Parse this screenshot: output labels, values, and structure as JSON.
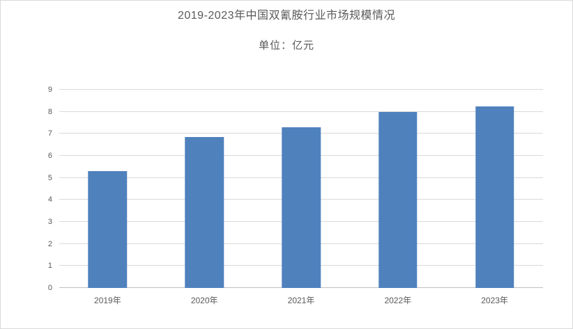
{
  "chart_data": {
    "type": "bar",
    "title": "2019-2023年中国双氰胺行业市场规模情况",
    "subtitle": "单位：亿元",
    "unit": "亿元",
    "categories": [
      "2019年",
      "2020年",
      "2021年",
      "2022年",
      "2023年"
    ],
    "values": [
      5.3,
      6.85,
      7.3,
      7.98,
      8.25
    ],
    "xlabel": "",
    "ylabel": "",
    "ylim": [
      0,
      9
    ],
    "ytick_step": 1,
    "ytick_labels": [
      "0",
      "1",
      "2",
      "3",
      "4",
      "5",
      "6",
      "7",
      "8",
      "9"
    ],
    "grid": true,
    "legend": false,
    "colors": {
      "bar": "#4f81bd",
      "gridline": "#d9d9d9",
      "axis": "#bfbfbf",
      "text": "#595959",
      "background": "#ffffff",
      "border": "#d9d9d9"
    }
  }
}
